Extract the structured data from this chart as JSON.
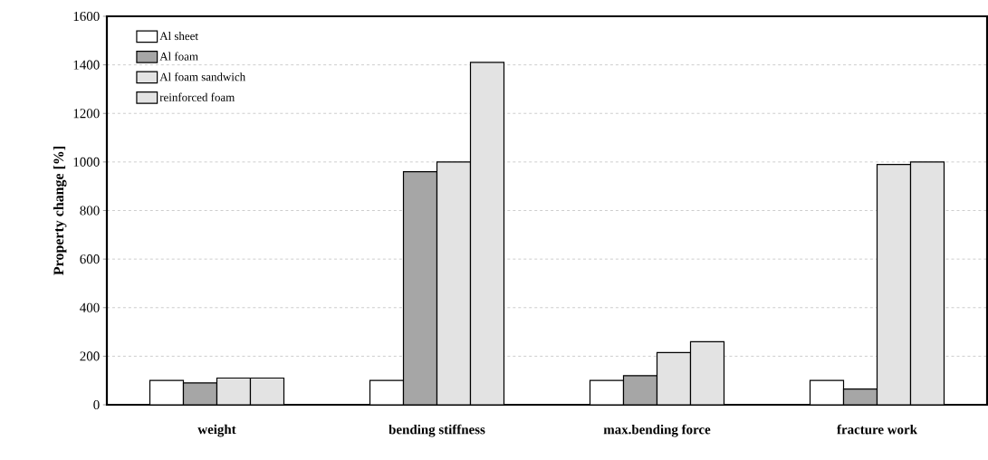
{
  "chart_data": {
    "type": "bar",
    "ylabel": "Property change [%]",
    "categories": [
      "weight",
      "bending stiffness",
      "max.bending force",
      "fracture work"
    ],
    "series": [
      {
        "name": "Al sheet",
        "color": "#ffffff",
        "values": [
          100,
          100,
          100,
          100
        ]
      },
      {
        "name": "Al foam",
        "color": "#a6a6a6",
        "values": [
          90,
          960,
          120,
          65
        ]
      },
      {
        "name": "Al foam sandwich",
        "color": "#e3e3e3",
        "values": [
          110,
          1000,
          215,
          990
        ]
      },
      {
        "name": "reinforced foam",
        "color": "#e3e3e3",
        "values": [
          110,
          1410,
          260,
          1000
        ]
      }
    ],
    "ylim": [
      0,
      1600
    ],
    "yticks": [
      0,
      200,
      400,
      600,
      800,
      1000,
      1200,
      1400,
      1600
    ],
    "grid": "y",
    "legend": "top left"
  }
}
